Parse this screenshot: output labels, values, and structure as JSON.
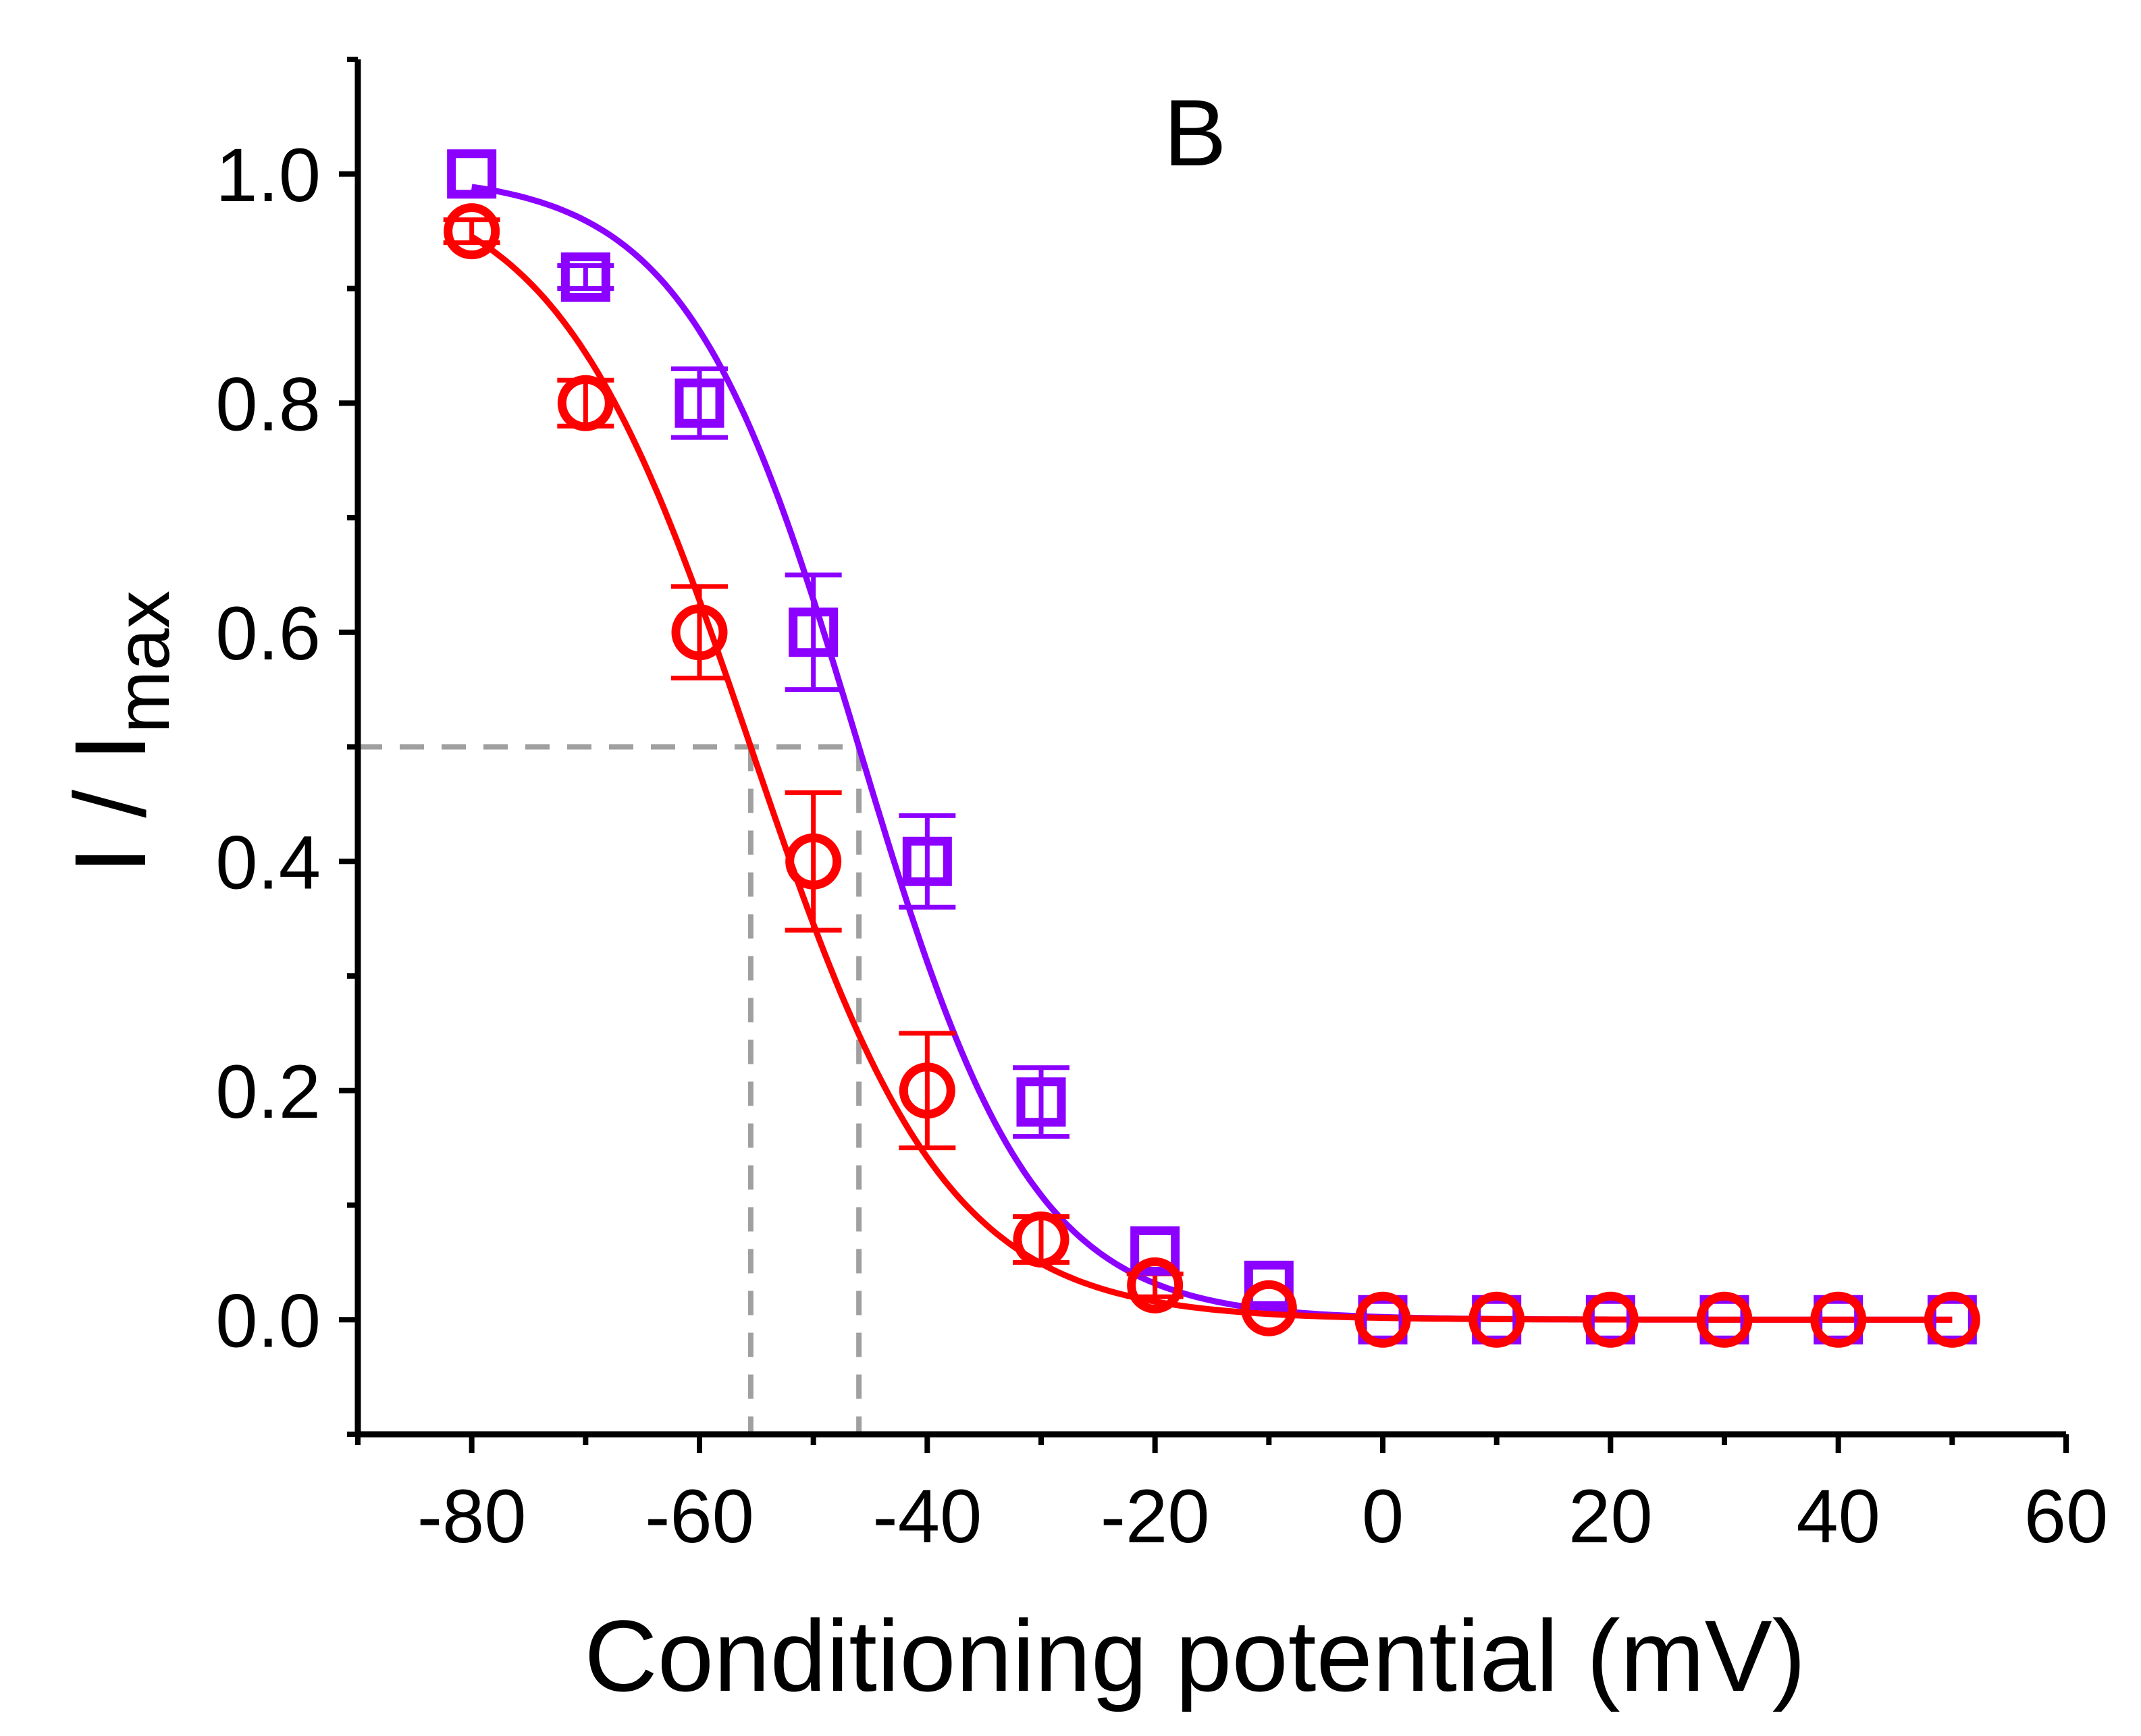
{
  "chart_data": {
    "type": "scatter",
    "panel_label": "B",
    "xlabel": "Conditioning potential (mV)",
    "ylabel": {
      "main": "I / I",
      "subscript": "max"
    },
    "xlim": [
      -90,
      60
    ],
    "ylim": [
      -0.1,
      1.1
    ],
    "x_ticks": [
      -80,
      -60,
      -40,
      -20,
      0,
      20,
      40,
      60
    ],
    "x_tick_labels": [
      "-80",
      "-60",
      "-40",
      "-20",
      "0",
      "20",
      "40",
      "60"
    ],
    "x_minor_ticks": [
      -90,
      -70,
      -50,
      -30,
      -10,
      10,
      30,
      50
    ],
    "y_ticks": [
      0.0,
      0.2,
      0.4,
      0.6,
      0.8,
      1.0
    ],
    "y_tick_labels": [
      "0.0",
      "0.2",
      "0.4",
      "0.6",
      "0.8",
      "1.0"
    ],
    "y_minor_ticks": [
      -0.1,
      0.1,
      0.3,
      0.5,
      0.7,
      0.9,
      1.1
    ],
    "grid": false,
    "legend": "none",
    "series": [
      {
        "name": "squares",
        "marker": "square",
        "color": "#8B00FF",
        "x": [
          -80,
          -70,
          -60,
          -50,
          -40,
          -30,
          -20,
          -10,
          0,
          10,
          20,
          30,
          40,
          50
        ],
        "y": [
          1.0,
          0.91,
          0.8,
          0.6,
          0.4,
          0.19,
          0.06,
          0.03,
          0.0,
          0.0,
          0.0,
          0.0,
          0.0,
          0.0
        ],
        "error": [
          0.0,
          0.01,
          0.03,
          0.05,
          0.04,
          0.03,
          0.0,
          0.0,
          0.0,
          0.0,
          0.0,
          0.0,
          0.0,
          0.0
        ],
        "fit": {
          "type": "boltzmann",
          "v_half": -46.0,
          "k": 7.6
        }
      },
      {
        "name": "circles",
        "marker": "circle",
        "color": "#FF0000",
        "x": [
          -80,
          -70,
          -60,
          -50,
          -40,
          -30,
          -20,
          -10,
          0,
          10,
          20,
          30,
          40,
          50
        ],
        "y": [
          0.95,
          0.8,
          0.6,
          0.4,
          0.2,
          0.07,
          0.03,
          0.01,
          0.0,
          0.0,
          0.0,
          0.0,
          0.0,
          0.0
        ],
        "error": [
          0.01,
          0.02,
          0.04,
          0.06,
          0.05,
          0.02,
          0.01,
          0.0,
          0.0,
          0.0,
          0.0,
          0.0,
          0.0,
          0.0
        ],
        "fit": {
          "type": "boltzmann",
          "v_half": -55.5,
          "k": 8.6
        }
      }
    ],
    "reference_lines": {
      "color": "#A0A0A0",
      "y_level": 0.5,
      "x_values": [
        -55.5,
        -46.0
      ]
    }
  }
}
